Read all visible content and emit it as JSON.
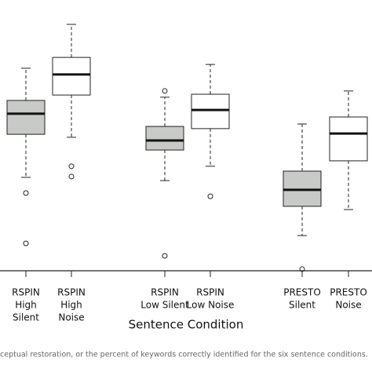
{
  "chart_data": {
    "type": "box",
    "x_label": "Sentence Condition",
    "caption": "ceptual restoration, or the percent of keywords correctly identified for the six sentence conditions.",
    "ylim": [
      0,
      100
    ],
    "categories": [
      [
        "RSPIN",
        "High",
        "Silent"
      ],
      [
        "RSPIN",
        "High",
        "Noise"
      ],
      [
        "RSPIN",
        "Low Silent"
      ],
      [
        "RSPIN",
        "Low Noise"
      ],
      [
        "PRESTO",
        "Silent"
      ],
      [
        "PRESTO",
        "Noise"
      ]
    ],
    "boxes": [
      {
        "color": "#c8cac8",
        "whisker_low": 34.5,
        "q1": 50.4,
        "median": 58.0,
        "q3": 62.9,
        "whisker_high": 74.8,
        "outliers": [
          28.7,
          10.1
        ]
      },
      {
        "color": "#ffffff",
        "whisker_low": 49.3,
        "q1": 64.9,
        "median": 72.5,
        "q3": 78.8,
        "whisker_high": 91.0,
        "outliers": [
          38.6,
          34.8
        ]
      },
      {
        "color": "#c8cac8",
        "whisker_low": 33.3,
        "q1": 44.6,
        "median": 48.1,
        "q3": 53.3,
        "whisker_high": 64.1,
        "outliers": [
          66.4,
          5.5
        ]
      },
      {
        "color": "#ffffff",
        "whisker_low": 38.6,
        "q1": 52.5,
        "median": 59.4,
        "q3": 65.2,
        "whisker_high": 76.2,
        "outliers": [
          27.5
        ]
      },
      {
        "color": "#c8cac8",
        "whisker_low": 13.0,
        "q1": 23.8,
        "median": 29.9,
        "q3": 36.8,
        "whisker_high": 54.2,
        "outliers": [
          0.6
        ]
      },
      {
        "color": "#ffffff",
        "whisker_low": 22.6,
        "q1": 40.6,
        "median": 50.7,
        "q3": 56.8,
        "whisker_high": 66.4,
        "outliers": []
      }
    ]
  }
}
